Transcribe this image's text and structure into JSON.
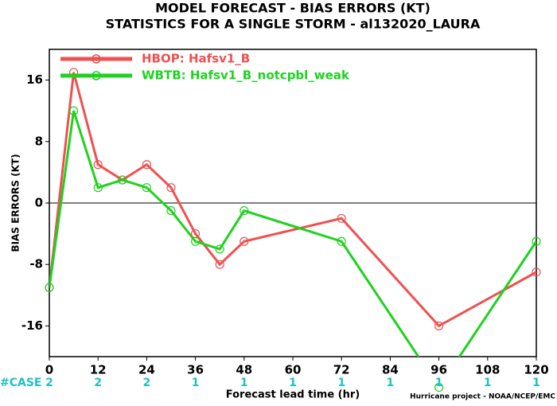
{
  "chart_data": {
    "type": "line",
    "title": "MODEL FORECAST - BIAS ERRORS (KT)",
    "subtitle": "STATISTICS FOR A SINGLE STORM - al132020_LAURA",
    "xlabel": "Forecast lead time (hr)",
    "ylabel": "BIAS ERRORS (KT)",
    "x": [
      0,
      6,
      12,
      18,
      24,
      30,
      36,
      42,
      48,
      72,
      96,
      120
    ],
    "series": [
      {
        "name": "HBOP: Hafsv1_B",
        "color": "#f05050",
        "values": [
          -11,
          17,
          5,
          3,
          5,
          2,
          -4,
          -8,
          -5,
          -2,
          -16,
          -9
        ]
      },
      {
        "name": "WBTB: Hafsv1_B_notcpbl_weak",
        "color": "#1ed21e",
        "values": [
          -11,
          12,
          2,
          3,
          2,
          -1,
          -5,
          -6,
          -1,
          -5,
          -24,
          -5
        ]
      }
    ],
    "xlim": [
      0,
      120
    ],
    "xticks": [
      0,
      12,
      24,
      36,
      48,
      60,
      72,
      84,
      96,
      108,
      120
    ],
    "ylim": [
      -20,
      20
    ],
    "yticks": [
      -16,
      -8,
      0,
      8,
      16
    ],
    "zero_line": true,
    "legend": "top-left",
    "cases": {
      "label": "#CASE",
      "color": "#20c0c8",
      "x": [
        0,
        12,
        24,
        36,
        48,
        60,
        72,
        84,
        96,
        108,
        120
      ],
      "values": [
        2,
        2,
        2,
        1,
        1,
        1,
        1,
        1,
        1,
        1,
        1
      ]
    },
    "footer": "Hurricane project - NOAA/NCEP/EMC"
  }
}
